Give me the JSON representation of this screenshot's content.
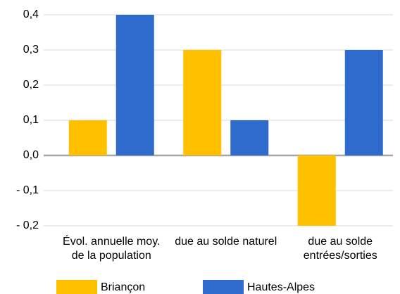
{
  "chart_data": {
    "type": "bar",
    "categories": [
      "Évol. annuelle moy. de la population",
      "due au solde naturel",
      "due au solde entrées/sorties"
    ],
    "series": [
      {
        "name": "Briançon",
        "color": "#ffc000",
        "values": [
          0.1,
          0.3,
          -0.2
        ]
      },
      {
        "name": "Hautes-Alpes",
        "color": "#2e6bcc",
        "values": [
          0.4,
          0.1,
          0.3
        ]
      }
    ],
    "ylim": [
      -0.2,
      0.4
    ],
    "yticks": [
      {
        "value": -0.2,
        "label": "- 0,2"
      },
      {
        "value": -0.1,
        "label": "- 0,1"
      },
      {
        "value": 0,
        "label": "0,0"
      },
      {
        "value": 0.1,
        "label": "0,1"
      },
      {
        "value": 0.2,
        "label": "0,2"
      },
      {
        "value": 0.3,
        "label": "0,3"
      },
      {
        "value": 0.4,
        "label": "0,4"
      }
    ],
    "grid": true,
    "legend": "bottom"
  }
}
